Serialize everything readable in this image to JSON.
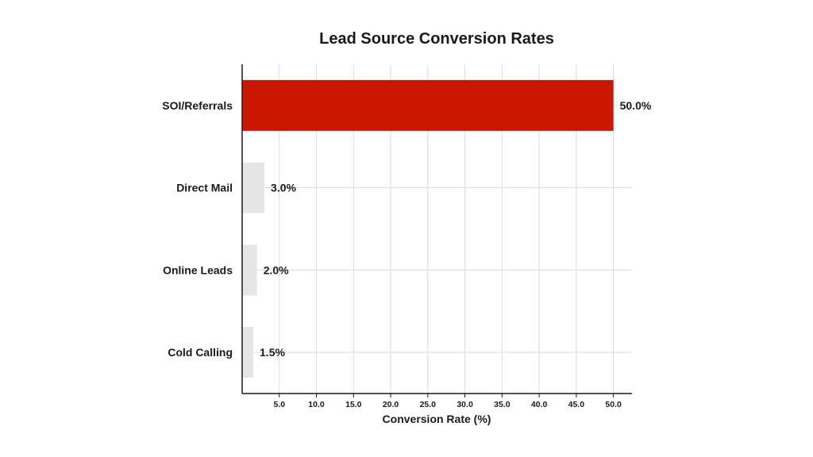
{
  "chart_data": {
    "type": "bar",
    "orientation": "horizontal",
    "title": "Lead Source Conversion Rates",
    "xlabel": "Conversion Rate (%)",
    "ylabel": "",
    "categories": [
      "SOI/Referrals",
      "Direct Mail",
      "Online Leads",
      "Cold Calling"
    ],
    "values": [
      50.0,
      3.0,
      2.0,
      1.5
    ],
    "data_labels": [
      "50.0%",
      "3.0%",
      "2.0%",
      "1.5%"
    ],
    "xlim": [
      0,
      52.5
    ],
    "xticks": [
      5.0,
      10.0,
      15.0,
      20.0,
      25.0,
      30.0,
      35.0,
      40.0,
      45.0,
      50.0
    ],
    "xtick_labels": [
      "5.0",
      "10.0",
      "15.0",
      "20.0",
      "25.0",
      "30.0",
      "35.0",
      "40.0",
      "45.0",
      "50.0"
    ],
    "grid": true,
    "colors": {
      "highlight": "#c81600",
      "default": "#e5e6e8",
      "grid": "#dcdcdc",
      "axis": "#1a1a1a"
    },
    "highlight_index": 0
  }
}
